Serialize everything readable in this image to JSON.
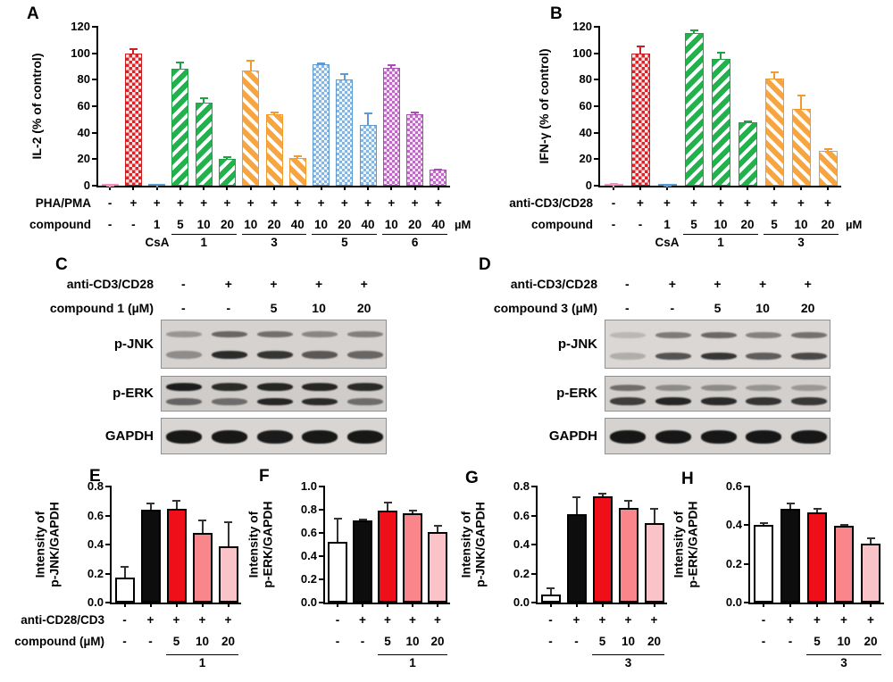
{
  "colors": {
    "red": "#dd2127",
    "green": "#23b14d",
    "orange": "#f7a540",
    "blue": "#85b6e3",
    "purple": "#c169c9",
    "pink_bar": "#f8bcd8",
    "eh_red": "#ee0f18",
    "eh_salmon": "#f9868a",
    "eh_lightpink": "#fac3c7",
    "axis": "#000000"
  },
  "chart_data": [
    {
      "panel": "A",
      "type": "bar",
      "ylabel": "IL-2 (% of control)",
      "ylim": [
        0,
        120
      ],
      "ytick_step": 20,
      "values": [
        0.5,
        100,
        1,
        88,
        63,
        20,
        87,
        54,
        21,
        92,
        80,
        46,
        89,
        54,
        12
      ],
      "errors": [
        0.3,
        4,
        0.4,
        6,
        4,
        2,
        8,
        2,
        2,
        0.8,
        5,
        9,
        3,
        2,
        1
      ],
      "styles": [
        "pink",
        "red-check",
        "blue-check",
        "green-stripe",
        "green-stripe",
        "green-stripe",
        "orange-stripe",
        "orange-stripe",
        "orange-stripe",
        "blue-check",
        "blue-check",
        "blue-check",
        "purple-check",
        "purple-check",
        "purple-check"
      ],
      "x_rows": [
        {
          "label": "PHA/PMA",
          "cells": [
            "-",
            "+",
            "+",
            "+",
            "+",
            "+",
            "+",
            "+",
            "+",
            "+",
            "+",
            "+",
            "+",
            "+",
            "+"
          ]
        },
        {
          "label": "compound",
          "cells": [
            "-",
            "-",
            "1",
            "5",
            "10",
            "20",
            "10",
            "20",
            "40",
            "10",
            "20",
            "40",
            "10",
            "20",
            "40"
          ],
          "unit": "µM"
        }
      ],
      "groups": [
        {
          "label": "CsA",
          "start": 2,
          "count": 1,
          "underline": false
        },
        {
          "label": "1",
          "start": 3,
          "count": 3,
          "underline": true
        },
        {
          "label": "3",
          "start": 6,
          "count": 3,
          "underline": true
        },
        {
          "label": "5",
          "start": 9,
          "count": 3,
          "underline": true
        },
        {
          "label": "6",
          "start": 12,
          "count": 3,
          "underline": true
        }
      ]
    },
    {
      "panel": "B",
      "type": "bar",
      "ylabel": "IFN-γ (% of control)",
      "ylim": [
        0,
        120
      ],
      "ytick_step": 20,
      "values": [
        1,
        100,
        0.5,
        115,
        96,
        48,
        81,
        58,
        26
      ],
      "errors": [
        1.2,
        6,
        0.3,
        3,
        5,
        1.5,
        5,
        11,
        2
      ],
      "styles": [
        "pink",
        "red-check",
        "blue-check",
        "green-stripe",
        "green-stripe",
        "green-stripe",
        "orange-stripe",
        "orange-stripe",
        "orange-stripe"
      ],
      "x_rows": [
        {
          "label": "anti-CD3/CD28",
          "cells": [
            "-",
            "+",
            "+",
            "+",
            "+",
            "+",
            "+",
            "+",
            "+"
          ]
        },
        {
          "label": "compound",
          "cells": [
            "-",
            "-",
            "1",
            "5",
            "10",
            "20",
            "5",
            "10",
            "20"
          ],
          "unit": "µM"
        }
      ],
      "groups": [
        {
          "label": "CsA",
          "start": 2,
          "count": 1,
          "underline": false
        },
        {
          "label": "1",
          "start": 3,
          "count": 3,
          "underline": true
        },
        {
          "label": "3",
          "start": 6,
          "count": 3,
          "underline": true
        }
      ]
    },
    {
      "panel": "E",
      "type": "bar",
      "ylabel_lines": [
        "Intensity of",
        "p-JNK/GAPDH"
      ],
      "ylim": [
        0,
        0.8
      ],
      "ytick_step": 0.2,
      "values": [
        0.17,
        0.64,
        0.645,
        0.48,
        0.39
      ],
      "errors": [
        0.085,
        0.05,
        0.06,
        0.09,
        0.17
      ],
      "styles": [
        "white",
        "black",
        "red",
        "salmon",
        "lightpink"
      ],
      "x_rows": [
        {
          "label": "anti-CD28/CD3",
          "cells": [
            "-",
            "+",
            "+",
            "+",
            "+"
          ]
        },
        {
          "label": "compound (µM)",
          "cells": [
            "-",
            "-",
            "5",
            "10",
            "20"
          ]
        }
      ],
      "groups": [
        {
          "label": "1",
          "start": 2,
          "count": 3,
          "underline": true
        }
      ]
    },
    {
      "panel": "F",
      "type": "bar",
      "ylabel_lines": [
        "Intensity of",
        "p-ERK/GAPDH"
      ],
      "ylim": [
        0,
        1.0
      ],
      "ytick_step": 0.2,
      "values": [
        0.52,
        0.71,
        0.79,
        0.77,
        0.61
      ],
      "errors": [
        0.21,
        0.015,
        0.08,
        0.03,
        0.06
      ],
      "styles": [
        "white",
        "black",
        "red",
        "salmon",
        "lightpink"
      ],
      "x_rows": [
        {
          "label": "",
          "cells": [
            "-",
            "+",
            "+",
            "+",
            "+"
          ]
        },
        {
          "label": "",
          "cells": [
            "-",
            "-",
            "5",
            "10",
            "20"
          ]
        }
      ],
      "groups": [
        {
          "label": "1",
          "start": 2,
          "count": 3,
          "underline": true
        }
      ]
    },
    {
      "panel": "G",
      "type": "bar",
      "ylabel_lines": [
        "Intensity of",
        "p-JNK/GAPDH"
      ],
      "ylim": [
        0,
        0.8
      ],
      "ytick_step": 0.2,
      "values": [
        0.055,
        0.61,
        0.73,
        0.655,
        0.55
      ],
      "errors": [
        0.05,
        0.12,
        0.025,
        0.05,
        0.1
      ],
      "styles": [
        "white",
        "black",
        "red",
        "salmon",
        "lightpink"
      ],
      "x_rows": [
        {
          "label": "",
          "cells": [
            "-",
            "+",
            "+",
            "+",
            "+"
          ]
        },
        {
          "label": "",
          "cells": [
            "-",
            "-",
            "5",
            "10",
            "20"
          ]
        }
      ],
      "groups": [
        {
          "label": "3",
          "start": 2,
          "count": 3,
          "underline": true
        }
      ]
    },
    {
      "panel": "H",
      "type": "bar",
      "ylabel_lines": [
        "Intensity of",
        "p-ERK/GAPDH"
      ],
      "ylim": [
        0,
        0.6
      ],
      "ytick_step": 0.2,
      "values": [
        0.4,
        0.485,
        0.465,
        0.395,
        0.305
      ],
      "errors": [
        0.015,
        0.03,
        0.025,
        0.012,
        0.032
      ],
      "styles": [
        "white",
        "black",
        "red",
        "salmon",
        "lightpink"
      ],
      "x_rows": [
        {
          "label": "",
          "cells": [
            "-",
            "+",
            "+",
            "+",
            "+"
          ]
        },
        {
          "label": "",
          "cells": [
            "-",
            "-",
            "5",
            "10",
            "20"
          ]
        }
      ],
      "groups": [
        {
          "label": "3",
          "start": 2,
          "count": 3,
          "underline": true
        }
      ]
    }
  ],
  "blot_data": [
    {
      "panel": "C",
      "x_rows": [
        {
          "label": "anti-CD3/CD28",
          "cells": [
            "-",
            "+",
            "+",
            "+",
            "+"
          ]
        },
        {
          "label": "compound 1 (µM)",
          "cells": [
            "-",
            "-",
            "5",
            "10",
            "20"
          ]
        }
      ],
      "blots": [
        {
          "label": "p-JNK",
          "bg": "#d5d2cf",
          "bands": [
            {
              "y": 0.28,
              "h": 7,
              "int": [
                0.3,
                0.55,
                0.5,
                0.38,
                0.42
              ]
            },
            {
              "y": 0.7,
              "h": 9,
              "int": [
                0.35,
                0.85,
                0.8,
                0.62,
                0.55
              ]
            }
          ]
        },
        {
          "label": "p-ERK",
          "bg": "#cfccc9",
          "bands": [
            {
              "y": 0.28,
              "h": 9,
              "int": [
                0.92,
                0.85,
                0.88,
                0.88,
                0.85
              ]
            },
            {
              "y": 0.7,
              "h": 8,
              "int": [
                0.55,
                0.5,
                0.88,
                0.85,
                0.5
              ]
            }
          ]
        },
        {
          "label": "GAPDH",
          "bg": "#d8d5d2",
          "bands": [
            {
              "y": 0.5,
              "h": 15,
              "int": [
                0.95,
                0.95,
                0.93,
                0.95,
                0.95
              ]
            }
          ]
        }
      ]
    },
    {
      "panel": "D",
      "x_rows": [
        {
          "label": "anti-CD3/CD28",
          "cells": [
            "-",
            "+",
            "+",
            "+",
            "+"
          ]
        },
        {
          "label": "compound 3 (µM)",
          "cells": [
            "-",
            "-",
            "5",
            "10",
            "20"
          ]
        }
      ],
      "blots": [
        {
          "label": "p-JNK",
          "bg": "#dad7d4",
          "bands": [
            {
              "y": 0.3,
              "h": 7,
              "int": [
                0.15,
                0.45,
                0.55,
                0.42,
                0.5
              ]
            },
            {
              "y": 0.72,
              "h": 8,
              "int": [
                0.2,
                0.65,
                0.8,
                0.6,
                0.7
              ]
            }
          ]
        },
        {
          "label": "p-ERK",
          "bg": "#d2cfcc",
          "bands": [
            {
              "y": 0.3,
              "h": 7,
              "int": [
                0.5,
                0.35,
                0.35,
                0.3,
                0.28
              ]
            },
            {
              "y": 0.68,
              "h": 9,
              "int": [
                0.75,
                0.88,
                0.85,
                0.8,
                0.78
              ]
            }
          ]
        },
        {
          "label": "GAPDH",
          "bg": "#d5d2cf",
          "bands": [
            {
              "y": 0.5,
              "h": 15,
              "int": [
                0.95,
                0.95,
                0.95,
                0.95,
                0.95
              ]
            }
          ]
        }
      ]
    }
  ]
}
